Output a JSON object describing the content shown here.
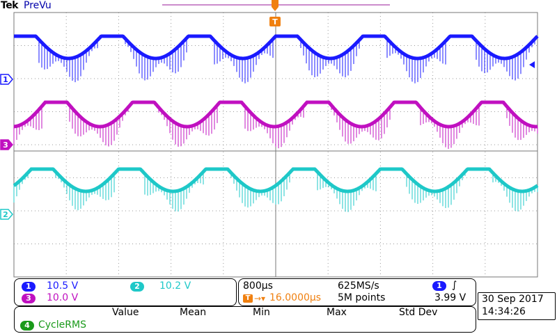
{
  "header": {
    "brand": "Tek",
    "mode": "PreVu"
  },
  "trigger": {
    "marker": "T"
  },
  "channels": {
    "ch1": {
      "id": "1",
      "color": "#1a1aff",
      "value": "10.5 V"
    },
    "ch2": {
      "id": "2",
      "color": "#1ec8c8",
      "value": "10.2 V"
    },
    "ch3": {
      "id": "3",
      "color": "#c010c0",
      "value": "10.0 V"
    },
    "ch4": {
      "id": "4",
      "color": "#1a9a1a"
    }
  },
  "acquisition": {
    "timebase": "800µs",
    "sample_rate": "625MS/s",
    "trigger_delay": "16.0000µs",
    "record_length": "5M points",
    "trigger_channel": "1",
    "trigger_slope": "∫",
    "trigger_level": "3.99 V"
  },
  "datetime": {
    "date": "30 Sep  2017",
    "time": "14:34:26"
  },
  "measurements": {
    "columns": [
      "Value",
      "Mean",
      "Min",
      "Max",
      "Std Dev"
    ],
    "rows": [
      {
        "channel": "4",
        "name": "CycleRMS"
      }
    ]
  }
}
